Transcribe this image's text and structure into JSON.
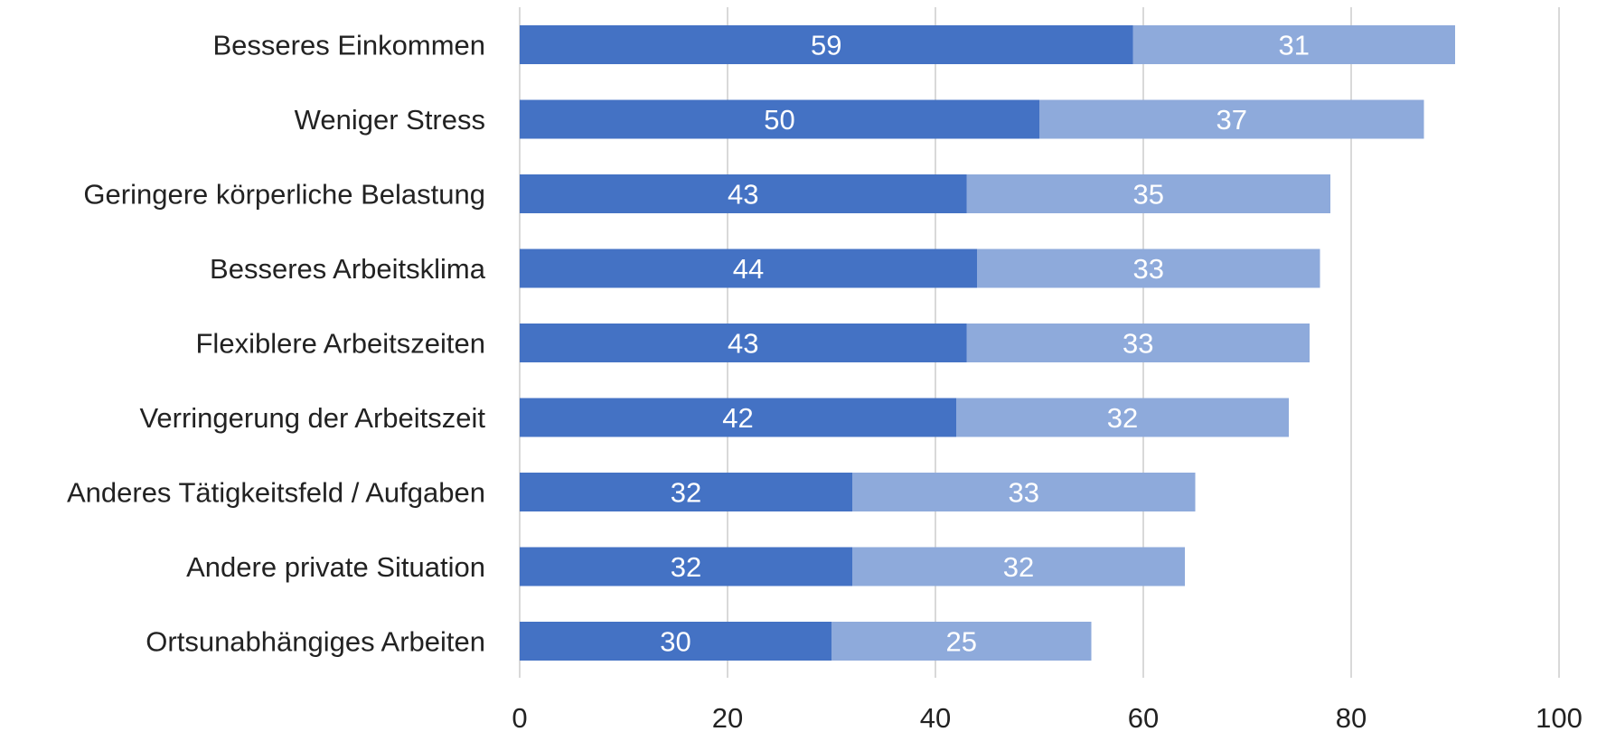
{
  "chart_data": {
    "type": "bar",
    "orientation": "horizontal",
    "stacked": true,
    "categories": [
      "Besseres Einkommen",
      "Weniger Stress",
      "Geringere körperliche Belastung",
      "Besseres Arbeitsklima",
      "Flexiblere Arbeitszeiten",
      "Verringerung der Arbeitszeit",
      "Anderes Tätigkeitsfeld / Aufgaben",
      "Andere private Situation",
      "Ortsunabhängiges Arbeiten"
    ],
    "series": [
      {
        "values": [
          59,
          50,
          43,
          44,
          43,
          42,
          32,
          32,
          30
        ],
        "color": "#4472c4"
      },
      {
        "values": [
          31,
          37,
          35,
          33,
          33,
          32,
          33,
          32,
          25
        ],
        "color": "#8eaadb"
      }
    ],
    "x_range": [
      0,
      100
    ],
    "x_ticks": [
      "0",
      "20",
      "40",
      "60",
      "80",
      "100"
    ],
    "grid": "vertical",
    "legend": "none",
    "data_labels": true
  }
}
